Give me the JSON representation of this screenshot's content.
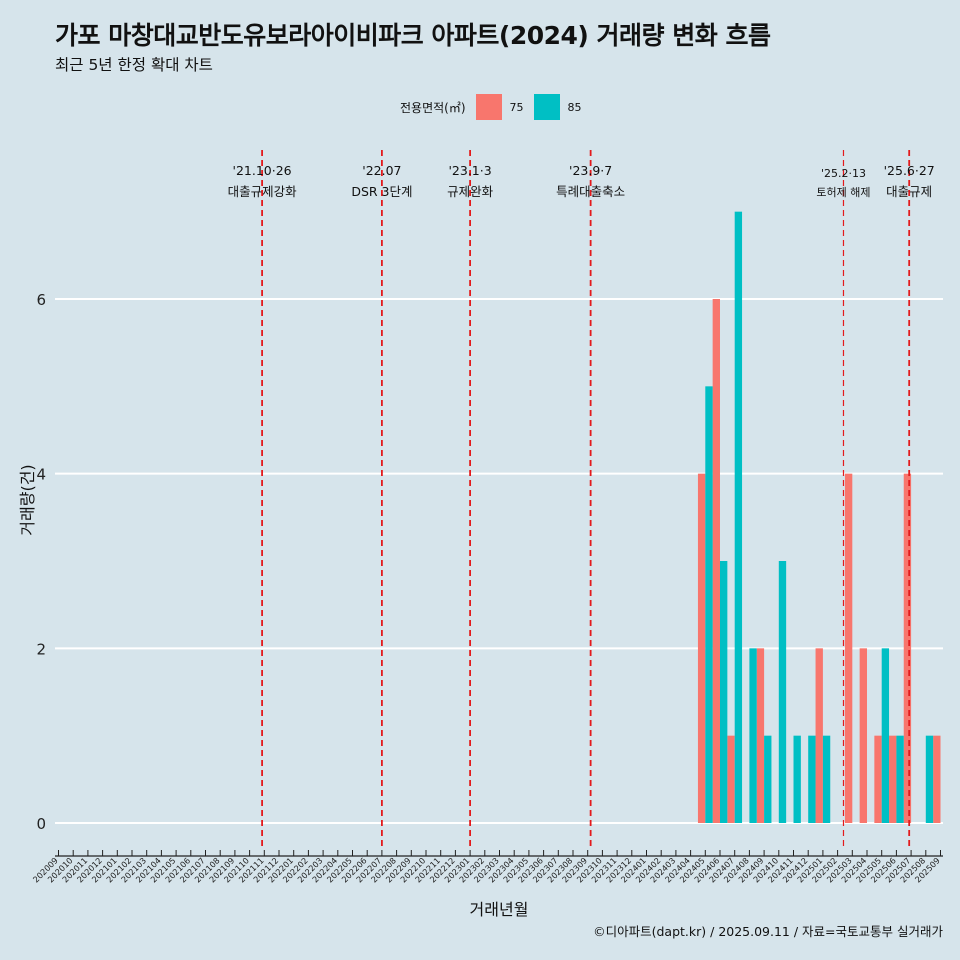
{
  "title": "가포 마창대교반도유보라아이비파크 아파트(2024) 거래량 변화 흐름",
  "subtitle": "최근 5년 한정 확대 차트",
  "legend": {
    "title": "전용면적(㎡)",
    "items": [
      {
        "label": "75",
        "color": "#f8766d"
      },
      {
        "label": "85",
        "color": "#00bfc4"
      }
    ]
  },
  "caption": "©디아파트(dapt.kr) / 2025.09.11 / 자료=국토교통부 실거래가",
  "chart_data": {
    "type": "bar",
    "xlabel": "거래년월",
    "ylabel": "거래량(건)",
    "ylim": [
      -0.3,
      7.3
    ],
    "yticks": [
      0,
      2,
      4,
      6
    ],
    "grid": "horizontal",
    "legend_position": "top",
    "categories": [
      "202009",
      "202010",
      "202011",
      "202012",
      "202101",
      "202102",
      "202103",
      "202104",
      "202105",
      "202106",
      "202107",
      "202108",
      "202109",
      "202110",
      "202111",
      "202112",
      "202201",
      "202202",
      "202203",
      "202204",
      "202205",
      "202206",
      "202207",
      "202208",
      "202209",
      "202210",
      "202211",
      "202212",
      "202301",
      "202302",
      "202303",
      "202304",
      "202305",
      "202306",
      "202307",
      "202308",
      "202309",
      "202310",
      "202311",
      "202312",
      "202401",
      "202402",
      "202403",
      "202404",
      "202405",
      "202406",
      "202407",
      "202408",
      "202409",
      "202410",
      "202411",
      "202412",
      "202501",
      "202502",
      "202503",
      "202504",
      "202505",
      "202506",
      "202507",
      "202508",
      "202509"
    ],
    "series": [
      {
        "name": "75",
        "color": "#f8766d",
        "values": [
          0,
          0,
          0,
          0,
          0,
          0,
          0,
          0,
          0,
          0,
          0,
          0,
          0,
          0,
          0,
          0,
          0,
          0,
          0,
          0,
          0,
          0,
          0,
          0,
          0,
          0,
          0,
          0,
          0,
          0,
          0,
          0,
          0,
          0,
          0,
          0,
          0,
          0,
          0,
          0,
          0,
          0,
          0,
          0,
          4,
          6,
          1,
          0,
          2,
          0,
          0,
          0,
          2,
          0,
          4,
          2,
          1,
          1,
          4,
          0,
          1
        ]
      },
      {
        "name": "85",
        "color": "#00bfc4",
        "values": [
          0,
          0,
          0,
          0,
          0,
          0,
          0,
          0,
          0,
          0,
          0,
          0,
          0,
          0,
          0,
          0,
          0,
          0,
          0,
          0,
          0,
          0,
          0,
          0,
          0,
          0,
          0,
          0,
          0,
          0,
          0,
          0,
          0,
          0,
          0,
          0,
          0,
          0,
          0,
          0,
          0,
          0,
          0,
          0,
          5,
          3,
          7,
          2,
          1,
          3,
          1,
          1,
          1,
          0,
          0,
          0,
          2,
          1,
          0,
          1,
          0
        ]
      }
    ],
    "annotations": [
      {
        "date": "'21.10·26",
        "label": "대출규제강화",
        "x": "202110",
        "offset": 0.85
      },
      {
        "date": "'22.07",
        "label": "DSR 3단계",
        "x": "202207",
        "offset": 0
      },
      {
        "date": "'23.1·3",
        "label": "규제완화",
        "x": "202301",
        "offset": 0
      },
      {
        "date": "'23.9·7",
        "label": "특례대출축소",
        "x": "202309",
        "offset": 0.2
      },
      {
        "date": "'25.2·13",
        "label": "토허제 해제",
        "x": "202502",
        "offset": 0.4,
        "small": true
      },
      {
        "date": "'25.6·27",
        "label": "대출규제",
        "x": "202506",
        "offset": 0.87
      }
    ]
  }
}
